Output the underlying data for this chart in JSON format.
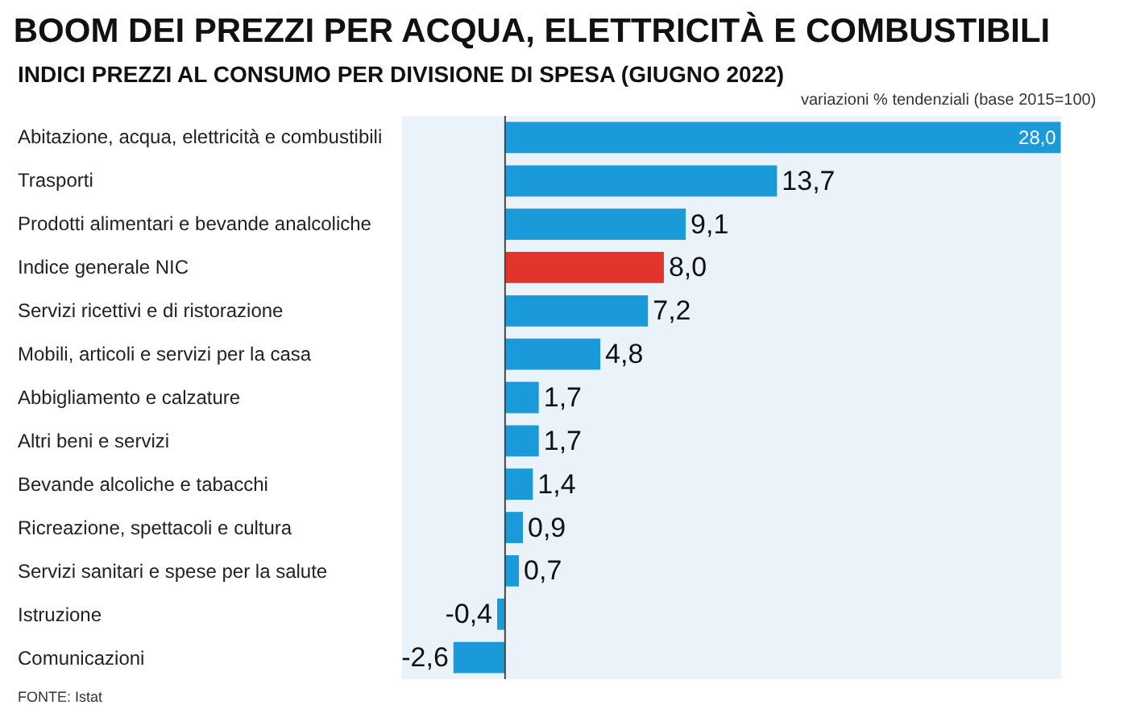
{
  "chart_data": {
    "type": "bar",
    "orientation": "horizontal",
    "title": "BOOM DEI PREZZI PER ACQUA, ELETTRICITÀ E COMBUSTIBILI",
    "subtitle": "INDICI PREZZI AL CONSUMO PER DIVISIONE DI SPESA (GIUGNO 2022)",
    "categories": [
      "Abitazione, acqua, elettricità e combustibili",
      "Trasporti",
      "Prodotti alimentari e bevande analcoliche",
      "Indice generale NIC",
      "Servizi ricettivi e di ristorazione",
      "Mobili, articoli e servizi per la casa",
      "Abbigliamento e calzature",
      "Altri beni e servizi",
      "Bevande alcoliche e tabacchi",
      "Ricreazione, spettacoli e cultura",
      "Servizi sanitari e spese per la salute",
      "Istruzione",
      "Comunicazioni"
    ],
    "values": [
      28.0,
      13.7,
      9.1,
      8.0,
      7.2,
      4.8,
      1.7,
      1.7,
      1.4,
      0.9,
      0.7,
      -0.4,
      -2.6
    ],
    "value_labels": [
      "28,0",
      "13,7",
      "9,1",
      "8,0",
      "7,2",
      "4,8",
      "1,7",
      "1,7",
      "1,4",
      "0,9",
      "0,7",
      "-0,4",
      "-2,6"
    ],
    "colors": [
      "#1a9ad9",
      "#1a9ad9",
      "#1a9ad9",
      "#e3342b",
      "#1a9ad9",
      "#1a9ad9",
      "#1a9ad9",
      "#1a9ad9",
      "#1a9ad9",
      "#1a9ad9",
      "#1a9ad9",
      "#1a9ad9",
      "#1a9ad9"
    ],
    "annotations": [
      "variazioni % tendenziali (base 2015=100)",
      "FONTE: Istat"
    ],
    "grid": false,
    "legend": false
  }
}
